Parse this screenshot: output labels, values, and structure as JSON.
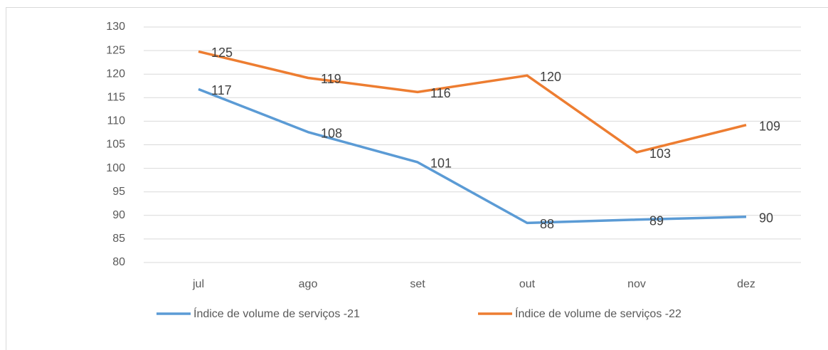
{
  "chart_data": {
    "type": "line",
    "categories": [
      "jul",
      "ago",
      "set",
      "out",
      "nov",
      "dez"
    ],
    "series": [
      {
        "name": "Índice de volume de serviços -21",
        "color": "#5b9bd5",
        "values": [
          116.8,
          107.7,
          101.3,
          88.4,
          89.1,
          89.7
        ],
        "value_labels": [
          "117",
          "108",
          "101",
          "88",
          "89",
          "90"
        ]
      },
      {
        "name": "Índice de volume de serviços -22",
        "color": "#ed7d31",
        "values": [
          124.8,
          119.2,
          116.2,
          119.7,
          103.4,
          109.2
        ],
        "value_labels": [
          "125",
          "119",
          "116",
          "120",
          "103",
          "109"
        ]
      }
    ],
    "ylim": [
      80,
      130
    ],
    "yticks": [
      80,
      85,
      90,
      95,
      100,
      105,
      110,
      115,
      120,
      125,
      130
    ],
    "grid": true,
    "legend": "bottom"
  }
}
